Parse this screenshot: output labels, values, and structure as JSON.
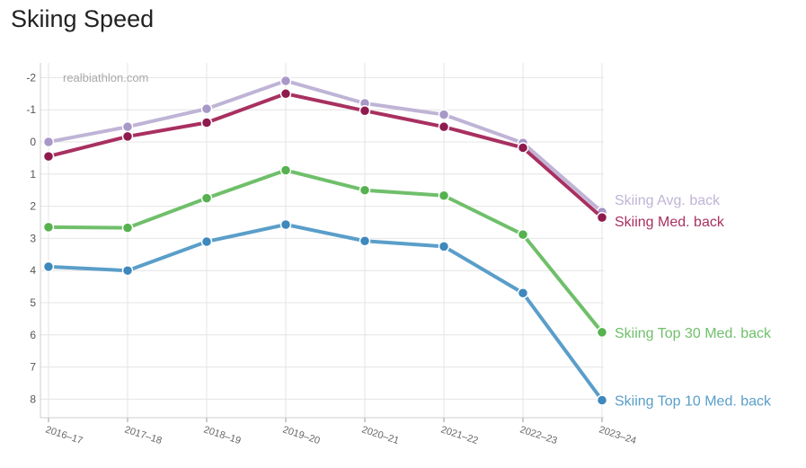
{
  "chart_data": {
    "type": "line",
    "title": "Skiing Speed",
    "watermark": "realbiathlon.com",
    "x": [
      "2016–17",
      "2017–18",
      "2018–19",
      "2019–20",
      "2020–21",
      "2021–22",
      "2022–23",
      "2023–24"
    ],
    "ylim": [
      -2.4,
      8.6
    ],
    "y_inverted": true,
    "y_ticks": [
      "-2",
      "-1",
      "0",
      "1",
      "2",
      "3",
      "4",
      "5",
      "6",
      "7",
      "8"
    ],
    "grid": true,
    "legend": "inline-right",
    "series": [
      {
        "name": "Skiing Avg. back",
        "color": "#bfb4d6",
        "marker": "#a898c8",
        "values": [
          0.0,
          -0.47,
          -1.03,
          -1.9,
          -1.2,
          -0.85,
          0.03,
          2.18
        ]
      },
      {
        "name": "Skiing Med. back",
        "color": "#a83060",
        "marker": "#8e1b4e",
        "values": [
          0.45,
          -0.17,
          -0.6,
          -1.5,
          -0.97,
          -0.47,
          0.18,
          2.35
        ]
      },
      {
        "name": "Skiing Top 30 Med. back",
        "color": "#6fbf6a",
        "marker": "#56b24f",
        "values": [
          2.65,
          2.67,
          1.75,
          0.88,
          1.5,
          1.67,
          2.88,
          5.92
        ]
      },
      {
        "name": "Skiing Top 10 Med. back",
        "color": "#5a9ec9",
        "marker": "#3d88bd",
        "values": [
          3.88,
          4.0,
          3.1,
          2.57,
          3.08,
          3.25,
          4.7,
          8.03
        ]
      }
    ]
  }
}
